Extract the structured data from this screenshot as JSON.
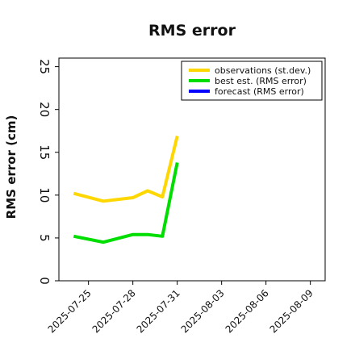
{
  "chart_data": {
    "type": "line",
    "title": "RMS error",
    "xlabel": "",
    "ylabel": "RMS error (cm)",
    "ylim": [
      0,
      26
    ],
    "xlim": [
      "2025-07-23",
      "2025-08-10"
    ],
    "yticks": [
      0,
      5,
      10,
      15,
      20,
      25
    ],
    "xticks": [
      {
        "label": "2025-07-25",
        "date": "2025-07-25",
        "color": "#000000"
      },
      {
        "label": "2025-07-28",
        "date": "2025-07-28",
        "color": "#000000"
      },
      {
        "label": "2025-07-31",
        "date": "2025-07-31",
        "color": "#228b22"
      },
      {
        "label": "2025-08-03",
        "date": "2025-08-03",
        "color": "#000000"
      },
      {
        "label": "2025-08-06",
        "date": "2025-08-06",
        "color": "#000000"
      },
      {
        "label": "2025-08-09",
        "date": "2025-08-09",
        "color": "#000000"
      }
    ],
    "legend_position": "top-right",
    "grid": false,
    "series": [
      {
        "name": "observations (st.dev.)",
        "color": "#ffd700",
        "points": [
          {
            "x": "2025-07-24",
            "y": 10.2
          },
          {
            "x": "2025-07-26",
            "y": 9.3
          },
          {
            "x": "2025-07-28",
            "y": 9.7
          },
          {
            "x": "2025-07-29",
            "y": 10.5
          },
          {
            "x": "2025-07-30",
            "y": 9.8
          },
          {
            "x": "2025-07-31",
            "y": 16.9
          }
        ]
      },
      {
        "name": "best est. (RMS error)",
        "color": "#00dd00",
        "points": [
          {
            "x": "2025-07-24",
            "y": 5.2
          },
          {
            "x": "2025-07-26",
            "y": 4.5
          },
          {
            "x": "2025-07-28",
            "y": 5.4
          },
          {
            "x": "2025-07-29",
            "y": 5.4
          },
          {
            "x": "2025-07-30",
            "y": 5.2
          },
          {
            "x": "2025-07-31",
            "y": 13.8
          }
        ]
      },
      {
        "name": "forecast (RMS error)",
        "color": "#0000ff",
        "points": []
      }
    ]
  }
}
